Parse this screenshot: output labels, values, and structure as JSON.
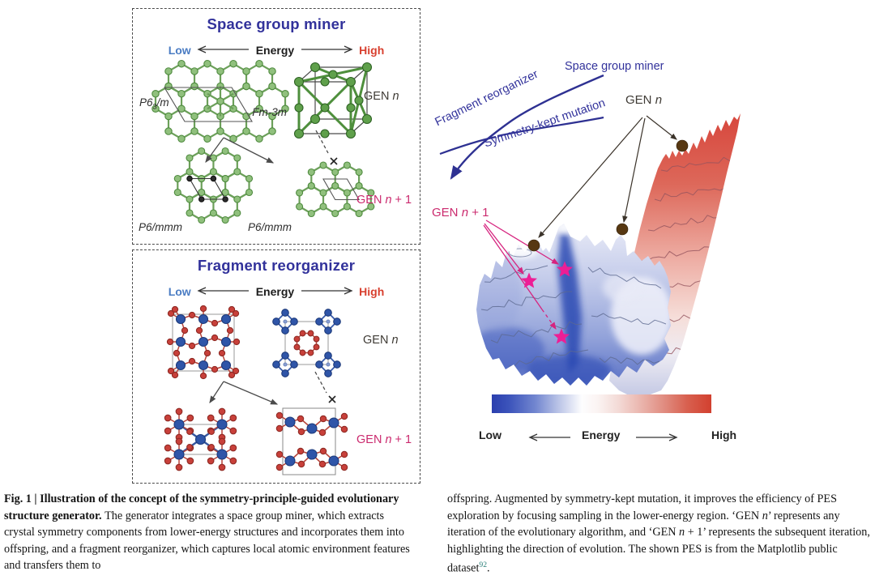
{
  "panels": {
    "sgm": {
      "title": "Space group miner",
      "legend": {
        "low": "Low",
        "mid": "Energy",
        "high": "High"
      },
      "gen_n": [
        {
          "t": "GEN ",
          "s": "n"
        },
        {
          "t": "n",
          "s": "i"
        }
      ],
      "gen_n1": [
        {
          "t": "GEN ",
          "s": "n"
        },
        {
          "t": "n",
          "s": "i"
        },
        {
          "t": " + 1",
          "s": "n"
        }
      ],
      "labels": {
        "parent_left": [
          {
            "t": "P6",
            "s": "i"
          },
          {
            "t": "3",
            "s": "sub"
          },
          {
            "t": "/m",
            "s": "i"
          }
        ],
        "parent_right": [
          {
            "t": "Fm-3m",
            "s": "i"
          }
        ],
        "child_left": [
          {
            "t": "P6/mmm",
            "s": "i"
          }
        ],
        "child_right": [
          {
            "t": "P6/mmm",
            "s": "i"
          }
        ]
      }
    },
    "fr": {
      "title": "Fragment reorganizer",
      "legend": {
        "low": "Low",
        "mid": "Energy",
        "high": "High"
      },
      "gen_n": [
        {
          "t": "GEN ",
          "s": "n"
        },
        {
          "t": "n",
          "s": "i"
        }
      ],
      "gen_n1": [
        {
          "t": "GEN ",
          "s": "n"
        },
        {
          "t": "n",
          "s": "i"
        },
        {
          "t": " + 1",
          "s": "n"
        }
      ]
    }
  },
  "pes": {
    "curve_labels": {
      "space_group_miner": "Space group miner",
      "fragment_reorganizer": "Fragment reorganizer",
      "symmetry_kept_mutation": "Symmetry-kept mutation"
    },
    "gen_n": [
      {
        "t": "GEN ",
        "s": "n"
      },
      {
        "t": "n",
        "s": "i"
      }
    ],
    "gen_n1": [
      {
        "t": "GEN ",
        "s": "n"
      },
      {
        "t": "n",
        "s": "i"
      },
      {
        "t": " + 1",
        "s": "n"
      }
    ],
    "colorbar": {
      "low": "Low",
      "mid": "Energy",
      "high": "High"
    }
  },
  "caption": {
    "left": [
      {
        "t": "Fig. 1 | Illustration of the concept of the symmetry-principle-guided evolutionary structure generator. ",
        "s": "b"
      },
      {
        "t": "The generator integrates a space group miner, which extracts crystal symmetry components from lower-energy structures and incorporates them into offspring, and a fragment reorganizer, which captures local atomic environment features and transfers them to",
        "s": "n"
      }
    ],
    "right": [
      {
        "t": "offspring. Augmented by symmetry-kept mutation, it improves the efficiency of PES exploration by focusing sampling in the lower-energy region. ‘GEN ",
        "s": "n"
      },
      {
        "t": "n",
        "s": "i"
      },
      {
        "t": "’ represents any iteration of the evolutionary algorithm, and ‘GEN ",
        "s": "n"
      },
      {
        "t": "n",
        "s": "i"
      },
      {
        "t": " + 1’ represents the subsequent iteration, highlighting the direction of evolution. The shown PES is from the Matplotlib public dataset",
        "s": "n"
      },
      {
        "t": "92",
        "s": "sup"
      },
      {
        "t": ".",
        "s": "n"
      }
    ]
  },
  "colors": {
    "accent_indigo": "#32329b",
    "low_blue": "#4a7cc3",
    "high_red": "#d8402f",
    "gen_magenta": "#cb2a6e",
    "star_pink": "#ed1e95",
    "dot_brown": "#573812",
    "green_bond": "#6ca05a",
    "atom_blue": "#2f55a8",
    "atom_red": "#c8403a",
    "ref_teal": "#2a7f78"
  }
}
